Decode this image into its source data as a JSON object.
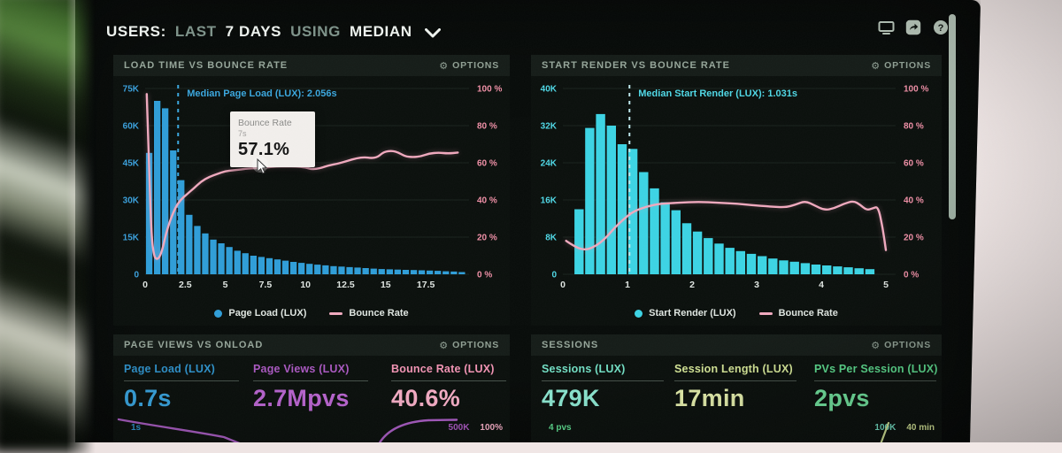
{
  "header": {
    "title_parts": [
      {
        "text": "USERS:",
        "style": "bright"
      },
      {
        "text": "LAST",
        "style": "muted"
      },
      {
        "text": "7 DAYS",
        "style": "bright"
      },
      {
        "text": "USING",
        "style": "muted"
      },
      {
        "text": "MEDIAN",
        "style": "bright"
      }
    ],
    "toolbar_icons": [
      "display-icon",
      "share-icon",
      "help-icon"
    ]
  },
  "colors": {
    "bar_blue": "#2f9ed8",
    "bar_cyan": "#3cd4e4",
    "line_pink": "#f0a9be",
    "axis_pink": "#ef8fa6",
    "axis_blue": "#3aa0dc",
    "axis_cyan": "#4fd8e6",
    "sage": "#96a69a"
  },
  "chart_data": [
    {
      "type": "bar",
      "title": "LOAD TIME VS BOUNCE RATE",
      "options_label": "OPTIONS",
      "bin_start": 0,
      "bin_width": 0.5,
      "bar_values_k": [
        49,
        70,
        67,
        50,
        38,
        24,
        19.5,
        16.5,
        14,
        12.5,
        11,
        9.5,
        8.5,
        7.5,
        7,
        6.5,
        6,
        5.5,
        5,
        4.6,
        4.2,
        3.9,
        3.6,
        3.3,
        3.1,
        2.9,
        2.7,
        2.5,
        2.3,
        2.1,
        2,
        1.9,
        1.8,
        1.7,
        1.6,
        1.5,
        1.4,
        1.2,
        1.1,
        0.9
      ],
      "bar_color": "#2f9ed8",
      "axis_color": "#3aa0dc",
      "y2_color": "#ef8fa6",
      "xlab_color": "#dfe5e1",
      "ylabels": [
        "75K",
        "60K",
        "45K",
        "30K",
        "15K",
        "0"
      ],
      "ylim_k": [
        0,
        75
      ],
      "y2labels": [
        "100 %",
        "80 %",
        "60 %",
        "40 %",
        "20 %",
        "0 %"
      ],
      "y2lim": [
        0,
        100
      ],
      "xticks": [
        0,
        2.5,
        5,
        7.5,
        10,
        12.5,
        15,
        17.5
      ],
      "xlim": [
        0,
        20.2
      ],
      "median": {
        "x": 2.056,
        "label": "Median Page Load (LUX): 2.056s",
        "color": "#3aa7de"
      },
      "line_color": "#f0a9be",
      "line_points": [
        [
          0.1,
          97
        ],
        [
          0.25,
          55
        ],
        [
          0.4,
          20
        ],
        [
          0.55,
          10
        ],
        [
          0.7,
          8
        ],
        [
          0.9,
          9
        ],
        [
          1.1,
          14
        ],
        [
          1.3,
          22
        ],
        [
          1.6,
          30
        ],
        [
          1.9,
          36
        ],
        [
          2.2,
          40
        ],
        [
          2.6,
          43
        ],
        [
          3.0,
          46
        ],
        [
          3.5,
          50
        ],
        [
          4.0,
          52.5
        ],
        [
          4.5,
          54
        ],
        [
          5.0,
          55.5
        ],
        [
          5.5,
          56
        ],
        [
          6.0,
          56.5
        ],
        [
          6.5,
          57
        ],
        [
          7.0,
          57.1
        ],
        [
          7.6,
          57.5
        ],
        [
          8.2,
          58
        ],
        [
          8.8,
          58
        ],
        [
          9.4,
          58
        ],
        [
          10.0,
          57.5
        ],
        [
          10.4,
          56.5
        ],
        [
          10.9,
          57
        ],
        [
          11.4,
          58.5
        ],
        [
          12.0,
          59.5
        ],
        [
          12.6,
          61
        ],
        [
          13.2,
          62.5
        ],
        [
          13.7,
          63
        ],
        [
          14.1,
          62.5
        ],
        [
          14.5,
          63
        ],
        [
          14.9,
          66
        ],
        [
          15.4,
          66.5
        ],
        [
          15.8,
          65.5
        ],
        [
          16.2,
          63.5
        ],
        [
          16.7,
          63
        ],
        [
          17.2,
          63.5
        ],
        [
          17.7,
          65
        ],
        [
          18.3,
          65.5
        ],
        [
          18.9,
          65
        ],
        [
          19.5,
          65.5
        ]
      ],
      "tooltip": {
        "title": "Bounce Rate",
        "x_label": "7s",
        "value": "57.1%"
      },
      "legend": [
        {
          "swatch": "dot",
          "color": "#2f9ed8",
          "label": "Page Load (LUX)"
        },
        {
          "swatch": "line",
          "color": "#f0a9be",
          "label": "Bounce Rate"
        }
      ]
    },
    {
      "type": "bar",
      "title": "START RENDER VS BOUNCE RATE",
      "options_label": "OPTIONS",
      "bin_start": 0.1667,
      "bin_width": 0.1667,
      "bar_values_k": [
        14,
        31.5,
        34.5,
        32,
        28,
        27,
        22,
        18.5,
        15.5,
        13.8,
        11,
        9.2,
        7.8,
        6.6,
        5.7,
        5,
        4.4,
        3.9,
        3.4,
        3,
        2.7,
        2.4,
        2.1,
        1.9,
        1.7,
        1.5,
        1.3,
        1.1
      ],
      "bar_color": "#3cd4e4",
      "axis_color": "#4fd8e6",
      "y2_color": "#ef8fa6",
      "xlab_color": "#dfe5e1",
      "ylabels": [
        "40K",
        "32K",
        "24K",
        "16K",
        "8K",
        "0"
      ],
      "ylim_k": [
        0,
        40
      ],
      "y2labels": [
        "100 %",
        "80 %",
        "60 %",
        "40 %",
        "20 %",
        "0 %"
      ],
      "y2lim": [
        0,
        100
      ],
      "xticks": [
        0,
        1,
        2,
        3,
        4,
        5
      ],
      "xlim": [
        0,
        5.15
      ],
      "median": {
        "x": 1.031,
        "label": "Median Start Render (LUX): 1.031s",
        "color": "#bfe9ee"
      },
      "median_label_color": "#4fd8e6",
      "line_color": "#f0a9be",
      "line_points": [
        [
          0.05,
          18
        ],
        [
          0.2,
          14.5
        ],
        [
          0.35,
          13
        ],
        [
          0.5,
          15
        ],
        [
          0.65,
          19
        ],
        [
          0.8,
          25
        ],
        [
          0.95,
          30
        ],
        [
          1.1,
          34
        ],
        [
          1.3,
          36.5
        ],
        [
          1.5,
          38
        ],
        [
          1.8,
          38.5
        ],
        [
          2.1,
          39
        ],
        [
          2.4,
          38.5
        ],
        [
          2.7,
          38
        ],
        [
          3.0,
          37
        ],
        [
          3.2,
          36.5
        ],
        [
          3.45,
          36
        ],
        [
          3.6,
          37.5
        ],
        [
          3.75,
          39.5
        ],
        [
          3.9,
          37
        ],
        [
          4.05,
          34.5
        ],
        [
          4.2,
          35.5
        ],
        [
          4.35,
          38
        ],
        [
          4.5,
          39.5
        ],
        [
          4.6,
          37.5
        ],
        [
          4.7,
          34.5
        ],
        [
          4.8,
          35.5
        ],
        [
          4.88,
          36.5
        ],
        [
          4.95,
          25
        ],
        [
          5.0,
          13
        ]
      ],
      "legend": [
        {
          "swatch": "dot",
          "color": "#3cd4e4",
          "label": "Start Render (LUX)"
        },
        {
          "swatch": "line",
          "color": "#f0a9be",
          "label": "Bounce Rate"
        }
      ]
    }
  ],
  "panels": {
    "pageviews": {
      "title": "PAGE VIEWS VS ONLOAD",
      "options_label": "OPTIONS",
      "metrics": [
        {
          "label": "Page Load (LUX)",
          "value": "0.7s"
        },
        {
          "label": "Page Views (LUX)",
          "value": "2.7Mpvs"
        },
        {
          "label": "Bounce Rate (LUX)",
          "value": "40.6%"
        }
      ],
      "axis_left": "1s",
      "axis_right_1": "500K",
      "axis_right_2": "100%"
    },
    "sessions": {
      "title": "SESSIONS",
      "options_label": "OPTIONS",
      "metrics": [
        {
          "label": "Sessions (LUX)",
          "value": "479K"
        },
        {
          "label": "Session Length (LUX)",
          "value": "17min"
        },
        {
          "label": "PVs Per Session (LUX)",
          "value": "2pvs"
        }
      ],
      "axis_left": "4 pvs",
      "axis_right_1": "100K",
      "axis_right_2": "40 min"
    }
  }
}
